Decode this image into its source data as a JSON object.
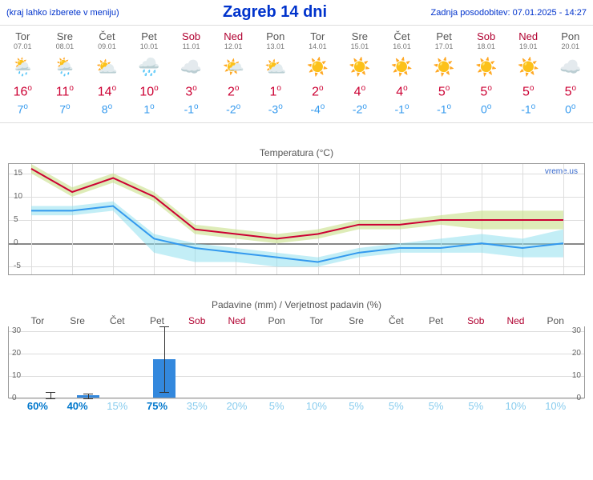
{
  "header": {
    "left": "(kraj lahko izberete v meniju)",
    "title": "Zagreb 14 dni",
    "right": "Zadnja posodobitev: 07.01.2025 - 14:27"
  },
  "days": [
    {
      "name": "Tor",
      "date": "07.01",
      "weekend": false,
      "icon": "sun-rain",
      "high": 16,
      "low": 7
    },
    {
      "name": "Sre",
      "date": "08.01",
      "weekend": false,
      "icon": "sun-rain",
      "high": 11,
      "low": 7
    },
    {
      "name": "Čet",
      "date": "09.01",
      "weekend": false,
      "icon": "cloud-sun",
      "high": 14,
      "low": 8
    },
    {
      "name": "Pet",
      "date": "10.01",
      "weekend": false,
      "icon": "rain",
      "high": 10,
      "low": 1
    },
    {
      "name": "Sob",
      "date": "11.01",
      "weekend": true,
      "icon": "cloud",
      "high": 3,
      "low": -1
    },
    {
      "name": "Ned",
      "date": "12.01",
      "weekend": true,
      "icon": "sun-cloud",
      "high": 2,
      "low": -2
    },
    {
      "name": "Pon",
      "date": "13.01",
      "weekend": false,
      "icon": "cloud-sun",
      "high": 1,
      "low": -3
    },
    {
      "name": "Tor",
      "date": "14.01",
      "weekend": false,
      "icon": "sun",
      "high": 2,
      "low": -4
    },
    {
      "name": "Sre",
      "date": "15.01",
      "weekend": false,
      "icon": "sun",
      "high": 4,
      "low": -2
    },
    {
      "name": "Čet",
      "date": "16.01",
      "weekend": false,
      "icon": "sun",
      "high": 4,
      "low": -1
    },
    {
      "name": "Pet",
      "date": "17.01",
      "weekend": false,
      "icon": "sun",
      "high": 5,
      "low": -1
    },
    {
      "name": "Sob",
      "date": "18.01",
      "weekend": true,
      "icon": "sun",
      "high": 5,
      "low": 0
    },
    {
      "name": "Ned",
      "date": "19.01",
      "weekend": true,
      "icon": "sun",
      "high": 5,
      "low": -1
    },
    {
      "name": "Pon",
      "date": "20.01",
      "weekend": false,
      "icon": "cloud",
      "high": 5,
      "low": 0
    }
  ],
  "temp_chart": {
    "title": "Temperatura (°C)",
    "watermark": "vreme.us",
    "ylim": [
      -7,
      17
    ],
    "yticks": [
      -5,
      0,
      5,
      10,
      15
    ],
    "high_line": {
      "color": "#cc0033",
      "width": 2,
      "values": [
        16,
        11,
        14,
        10,
        3,
        2,
        1,
        2,
        4,
        4,
        5,
        5,
        5,
        5
      ]
    },
    "high_band": {
      "color": "#c8e088",
      "opacity": 0.6,
      "upper": [
        17,
        12,
        15,
        11,
        4,
        3,
        2,
        3,
        5,
        5,
        6,
        7,
        7,
        7
      ],
      "lower": [
        15,
        10,
        13,
        9,
        2,
        1,
        0,
        1,
        3,
        3,
        4,
        3,
        3,
        3
      ]
    },
    "low_line": {
      "color": "#3399ee",
      "width": 2,
      "values": [
        7,
        7,
        8,
        1,
        -1,
        -2,
        -3,
        -4,
        -2,
        -1,
        -1,
        0,
        -1,
        0
      ]
    },
    "low_band": {
      "color": "#88ddee",
      "opacity": 0.5,
      "upper": [
        8,
        8,
        9,
        2,
        0,
        -1,
        -2,
        -3,
        -1,
        0,
        1,
        2,
        1,
        3
      ],
      "lower": [
        6,
        6,
        7,
        -2,
        -4,
        -4,
        -5,
        -5,
        -3,
        -2,
        -2,
        -2,
        -3,
        -3
      ]
    },
    "zero_line_color": "#888"
  },
  "precip_chart": {
    "title": "Padavine (mm) / Verjetnost padavin (%)",
    "ylim": [
      0,
      32
    ],
    "yticks": [
      0,
      10,
      20,
      30
    ],
    "bars": [
      {
        "day": 0,
        "mm": 0,
        "whisker_top": 3,
        "whisker_bot": 0
      },
      {
        "day": 1,
        "mm": 1,
        "whisker_top": 2,
        "whisker_bot": 0
      },
      {
        "day": 2,
        "mm": 0,
        "whisker_top": 0,
        "whisker_bot": 0
      },
      {
        "day": 3,
        "mm": 17,
        "whisker_top": 32,
        "whisker_bot": 3
      },
      {
        "day": 4,
        "mm": 0,
        "whisker_top": 0,
        "whisker_bot": 0
      },
      {
        "day": 5,
        "mm": 0,
        "whisker_top": 0,
        "whisker_bot": 0
      },
      {
        "day": 6,
        "mm": 0,
        "whisker_top": 0,
        "whisker_bot": 0
      },
      {
        "day": 7,
        "mm": 0,
        "whisker_top": 0,
        "whisker_bot": 0
      },
      {
        "day": 8,
        "mm": 0,
        "whisker_top": 0,
        "whisker_bot": 0
      },
      {
        "day": 9,
        "mm": 0,
        "whisker_top": 0,
        "whisker_bot": 0
      },
      {
        "day": 10,
        "mm": 0,
        "whisker_top": 0,
        "whisker_bot": 0
      },
      {
        "day": 11,
        "mm": 0,
        "whisker_top": 0,
        "whisker_bot": 0
      },
      {
        "day": 12,
        "mm": 0,
        "whisker_top": 0,
        "whisker_bot": 0
      },
      {
        "day": 13,
        "mm": 0,
        "whisker_top": 0,
        "whisker_bot": 0
      }
    ],
    "bar_color": "#3388dd",
    "prob": [
      60,
      40,
      15,
      75,
      35,
      20,
      5,
      10,
      5,
      5,
      5,
      5,
      10,
      10
    ],
    "prob_color_strong": "#0077cc",
    "prob_color_weak": "#88ccee"
  },
  "icons": {
    "sun": "☀️",
    "cloud": "☁️",
    "cloud-sun": "⛅",
    "sun-cloud": "🌤️",
    "rain": "🌧️",
    "sun-rain": "🌦️"
  }
}
